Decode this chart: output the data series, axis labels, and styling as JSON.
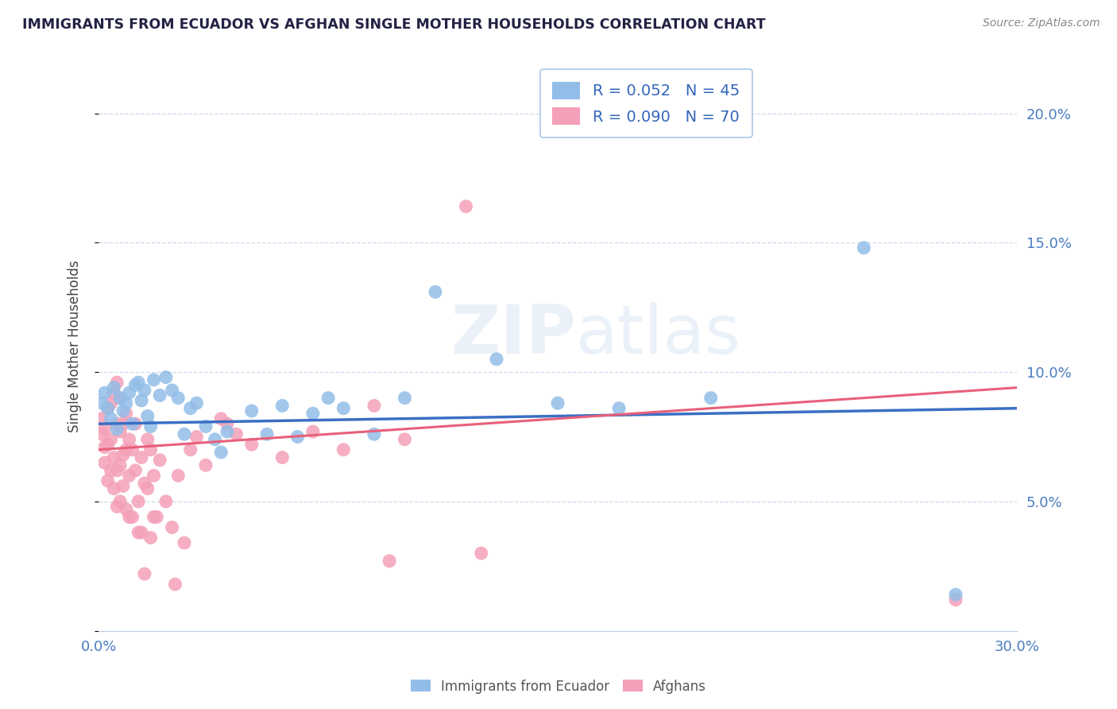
{
  "title": "IMMIGRANTS FROM ECUADOR VS AFGHAN SINGLE MOTHER HOUSEHOLDS CORRELATION CHART",
  "source": "Source: ZipAtlas.com",
  "ylabel": "Single Mother Households",
  "xlim": [
    0.0,
    0.3
  ],
  "ylim": [
    0.0,
    0.22
  ],
  "ecuador_color": "#92bde8",
  "afghan_color": "#f4a0b8",
  "ecuador_line_color": "#3a6fc4",
  "afghan_line_color": "#e8607a",
  "watermark": "ZIPatlas",
  "background_color": "#ffffff",
  "grid_color": "#c8d8ec",
  "ecuador_R": 0.052,
  "afghan_R": 0.09,
  "ecuador_line": [
    0.0,
    0.08,
    0.3,
    0.086
  ],
  "afghan_line": [
    0.0,
    0.07,
    0.3,
    0.094
  ],
  "ecuador_points": [
    [
      0.001,
      0.088
    ],
    [
      0.002,
      0.092
    ],
    [
      0.003,
      0.086
    ],
    [
      0.004,
      0.082
    ],
    [
      0.005,
      0.094
    ],
    [
      0.006,
      0.078
    ],
    [
      0.007,
      0.09
    ],
    [
      0.008,
      0.085
    ],
    [
      0.009,
      0.088
    ],
    [
      0.01,
      0.092
    ],
    [
      0.011,
      0.08
    ],
    [
      0.012,
      0.095
    ],
    [
      0.013,
      0.096
    ],
    [
      0.014,
      0.089
    ],
    [
      0.015,
      0.093
    ],
    [
      0.016,
      0.083
    ],
    [
      0.017,
      0.079
    ],
    [
      0.018,
      0.097
    ],
    [
      0.02,
      0.091
    ],
    [
      0.022,
      0.098
    ],
    [
      0.024,
      0.093
    ],
    [
      0.026,
      0.09
    ],
    [
      0.028,
      0.076
    ],
    [
      0.03,
      0.086
    ],
    [
      0.032,
      0.088
    ],
    [
      0.035,
      0.079
    ],
    [
      0.038,
      0.074
    ],
    [
      0.04,
      0.069
    ],
    [
      0.042,
      0.077
    ],
    [
      0.05,
      0.085
    ],
    [
      0.055,
      0.076
    ],
    [
      0.06,
      0.087
    ],
    [
      0.065,
      0.075
    ],
    [
      0.07,
      0.084
    ],
    [
      0.075,
      0.09
    ],
    [
      0.08,
      0.086
    ],
    [
      0.09,
      0.076
    ],
    [
      0.1,
      0.09
    ],
    [
      0.11,
      0.131
    ],
    [
      0.13,
      0.105
    ],
    [
      0.15,
      0.088
    ],
    [
      0.17,
      0.086
    ],
    [
      0.2,
      0.09
    ],
    [
      0.25,
      0.148
    ],
    [
      0.28,
      0.014
    ]
  ],
  "afghan_points": [
    [
      0.001,
      0.082
    ],
    [
      0.001,
      0.076
    ],
    [
      0.002,
      0.071
    ],
    [
      0.002,
      0.065
    ],
    [
      0.002,
      0.078
    ],
    [
      0.003,
      0.086
    ],
    [
      0.003,
      0.072
    ],
    [
      0.003,
      0.058
    ],
    [
      0.004,
      0.088
    ],
    [
      0.004,
      0.074
    ],
    [
      0.004,
      0.062
    ],
    [
      0.005,
      0.092
    ],
    [
      0.005,
      0.067
    ],
    [
      0.005,
      0.055
    ],
    [
      0.006,
      0.096
    ],
    [
      0.006,
      0.08
    ],
    [
      0.006,
      0.062
    ],
    [
      0.006,
      0.048
    ],
    [
      0.007,
      0.09
    ],
    [
      0.007,
      0.077
    ],
    [
      0.007,
      0.064
    ],
    [
      0.007,
      0.05
    ],
    [
      0.008,
      0.08
    ],
    [
      0.008,
      0.068
    ],
    [
      0.008,
      0.056
    ],
    [
      0.009,
      0.084
    ],
    [
      0.009,
      0.07
    ],
    [
      0.009,
      0.047
    ],
    [
      0.01,
      0.074
    ],
    [
      0.01,
      0.06
    ],
    [
      0.01,
      0.044
    ],
    [
      0.011,
      0.07
    ],
    [
      0.011,
      0.044
    ],
    [
      0.012,
      0.08
    ],
    [
      0.012,
      0.062
    ],
    [
      0.013,
      0.05
    ],
    [
      0.013,
      0.038
    ],
    [
      0.014,
      0.067
    ],
    [
      0.014,
      0.038
    ],
    [
      0.015,
      0.022
    ],
    [
      0.015,
      0.057
    ],
    [
      0.016,
      0.074
    ],
    [
      0.016,
      0.055
    ],
    [
      0.017,
      0.07
    ],
    [
      0.017,
      0.036
    ],
    [
      0.018,
      0.06
    ],
    [
      0.018,
      0.044
    ],
    [
      0.019,
      0.044
    ],
    [
      0.02,
      0.066
    ],
    [
      0.022,
      0.05
    ],
    [
      0.024,
      0.04
    ],
    [
      0.025,
      0.018
    ],
    [
      0.026,
      0.06
    ],
    [
      0.028,
      0.034
    ],
    [
      0.03,
      0.07
    ],
    [
      0.032,
      0.075
    ],
    [
      0.035,
      0.064
    ],
    [
      0.04,
      0.082
    ],
    [
      0.042,
      0.08
    ],
    [
      0.045,
      0.076
    ],
    [
      0.05,
      0.072
    ],
    [
      0.06,
      0.067
    ],
    [
      0.07,
      0.077
    ],
    [
      0.08,
      0.07
    ],
    [
      0.09,
      0.087
    ],
    [
      0.095,
      0.027
    ],
    [
      0.1,
      0.074
    ],
    [
      0.12,
      0.164
    ],
    [
      0.125,
      0.03
    ],
    [
      0.28,
      0.012
    ]
  ]
}
